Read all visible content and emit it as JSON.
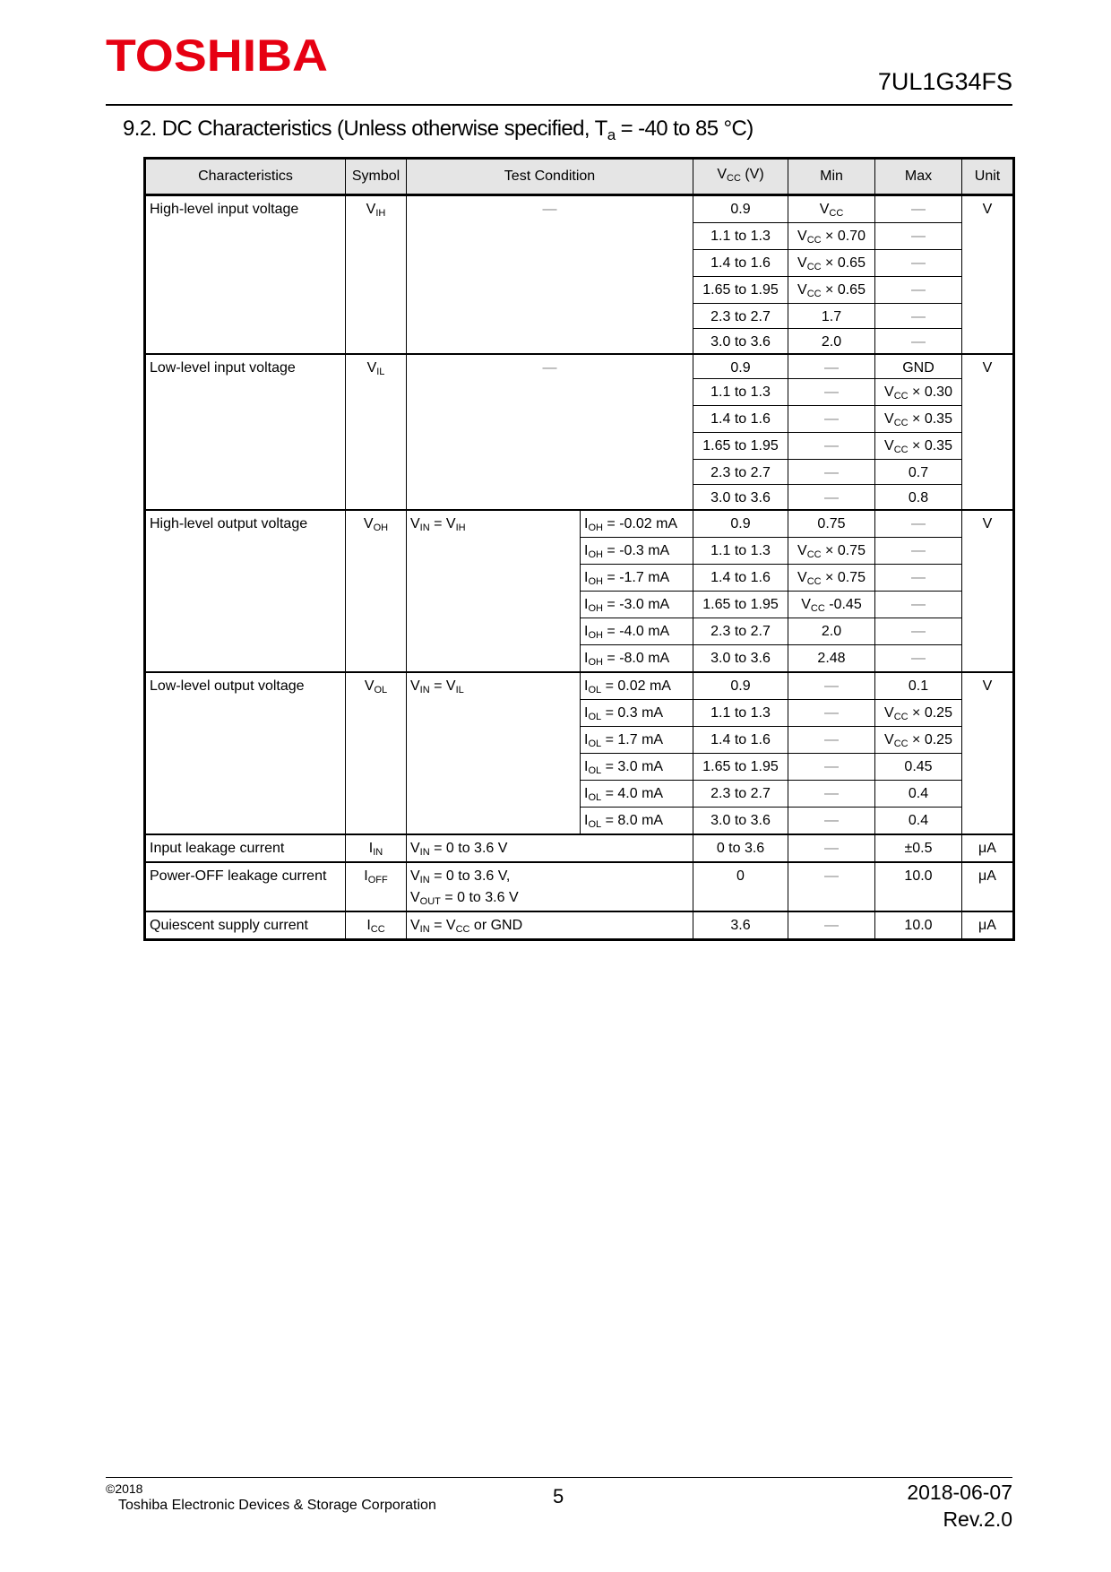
{
  "header": {
    "logo": "TOSHIBA",
    "part_number": "7UL1G34FS",
    "logo_color": "#e60012"
  },
  "section": {
    "title_pre": "9.2.  DC Characteristics (Unless otherwise specified, T",
    "title_sub": "a",
    "title_post": " = -40 to 85 °C)"
  },
  "table": {
    "columns": [
      "Characteristics",
      "Symbol",
      "Test Condition",
      [
        [
          "V",
          {
            "sub": "CC"
          },
          " (V)"
        ]
      ],
      "Min",
      "Max",
      "Unit"
    ],
    "groups": [
      {
        "name": "High-level input voltage",
        "symbol": [
          "V",
          {
            "sub": "IH"
          }
        ],
        "condition": [
          "—"
        ],
        "unit": "V",
        "cond_span": true,
        "rows": [
          {
            "vcc": "0.9",
            "min": [
              "V",
              {
                "sub": "CC"
              }
            ],
            "max": "—"
          },
          {
            "vcc": "1.1 to 1.3",
            "min": [
              "V",
              {
                "sub": "CC"
              },
              " × 0.70"
            ],
            "max": "—"
          },
          {
            "vcc": "1.4 to 1.6",
            "min": [
              "V",
              {
                "sub": "CC"
              },
              " × 0.65"
            ],
            "max": "—"
          },
          {
            "vcc": "1.65 to 1.95",
            "min": [
              "V",
              {
                "sub": "CC"
              },
              " × 0.65"
            ],
            "max": "—"
          },
          {
            "vcc": "2.3 to 2.7",
            "min": "1.7",
            "max": "—"
          },
          {
            "vcc": "3.0 to 3.6",
            "min": "2.0",
            "max": "—"
          }
        ]
      },
      {
        "name": "Low-level input voltage",
        "symbol": [
          "V",
          {
            "sub": "IL"
          }
        ],
        "condition": [
          "—"
        ],
        "unit": "V",
        "cond_span": true,
        "rows": [
          {
            "vcc": "0.9",
            "min": "—",
            "max": "GND"
          },
          {
            "vcc": "1.1 to 1.3",
            "min": "—",
            "max": [
              "V",
              {
                "sub": "CC"
              },
              " × 0.30"
            ]
          },
          {
            "vcc": "1.4 to 1.6",
            "min": "—",
            "max": [
              "V",
              {
                "sub": "CC"
              },
              " × 0.35"
            ]
          },
          {
            "vcc": "1.65 to 1.95",
            "min": "—",
            "max": [
              "V",
              {
                "sub": "CC"
              },
              " × 0.35"
            ]
          },
          {
            "vcc": "2.3 to 2.7",
            "min": "—",
            "max": "0.7"
          },
          {
            "vcc": "3.0 to 3.6",
            "min": "—",
            "max": "0.8"
          }
        ]
      },
      {
        "name": "High-level output voltage",
        "symbol": [
          "V",
          {
            "sub": "OH"
          }
        ],
        "condition": [
          "V",
          {
            "sub": "IN"
          },
          " = V",
          {
            "sub": "IH"
          }
        ],
        "unit": "V",
        "rows": [
          {
            "cond2": [
              "I",
              {
                "sub": "OH"
              },
              " = -0.02 mA"
            ],
            "vcc": "0.9",
            "min": "0.75",
            "max": "—"
          },
          {
            "cond2": [
              "I",
              {
                "sub": "OH"
              },
              " = -0.3 mA"
            ],
            "vcc": "1.1 to 1.3",
            "min": [
              "V",
              {
                "sub": "CC"
              },
              " × 0.75"
            ],
            "max": "—"
          },
          {
            "cond2": [
              "I",
              {
                "sub": "OH"
              },
              " = -1.7 mA"
            ],
            "vcc": "1.4 to 1.6",
            "min": [
              "V",
              {
                "sub": "CC"
              },
              " × 0.75"
            ],
            "max": "—"
          },
          {
            "cond2": [
              "I",
              {
                "sub": "OH"
              },
              " = -3.0 mA"
            ],
            "vcc": "1.65 to 1.95",
            "min": [
              "V",
              {
                "sub": "CC"
              },
              " -0.45"
            ],
            "max": "—"
          },
          {
            "cond2": [
              "I",
              {
                "sub": "OH"
              },
              " = -4.0 mA"
            ],
            "vcc": "2.3 to 2.7",
            "min": "2.0",
            "max": "—"
          },
          {
            "cond2": [
              "I",
              {
                "sub": "OH"
              },
              " = -8.0 mA"
            ],
            "vcc": "3.0 to 3.6",
            "min": "2.48",
            "max": "—"
          }
        ]
      },
      {
        "name": "Low-level output voltage",
        "symbol": [
          "V",
          {
            "sub": "OL"
          }
        ],
        "condition": [
          "V",
          {
            "sub": "IN"
          },
          " = V",
          {
            "sub": "IL"
          }
        ],
        "unit": "V",
        "rows": [
          {
            "cond2": [
              "I",
              {
                "sub": "OL"
              },
              " = 0.02 mA"
            ],
            "vcc": "0.9",
            "min": "—",
            "max": "0.1"
          },
          {
            "cond2": [
              "I",
              {
                "sub": "OL"
              },
              " = 0.3 mA"
            ],
            "vcc": "1.1 to 1.3",
            "min": "—",
            "max": [
              "V",
              {
                "sub": "CC"
              },
              " × 0.25"
            ]
          },
          {
            "cond2": [
              "I",
              {
                "sub": "OL"
              },
              " = 1.7 mA"
            ],
            "vcc": "1.4 to 1.6",
            "min": "—",
            "max": [
              "V",
              {
                "sub": "CC"
              },
              " × 0.25"
            ]
          },
          {
            "cond2": [
              "I",
              {
                "sub": "OL"
              },
              " = 3.0 mA"
            ],
            "vcc": "1.65 to 1.95",
            "min": "—",
            "max": "0.45"
          },
          {
            "cond2": [
              "I",
              {
                "sub": "OL"
              },
              " = 4.0 mA"
            ],
            "vcc": "2.3 to 2.7",
            "min": "—",
            "max": "0.4"
          },
          {
            "cond2": [
              "I",
              {
                "sub": "OL"
              },
              " = 8.0 mA"
            ],
            "vcc": "3.0 to 3.6",
            "min": "—",
            "max": "0.4"
          }
        ]
      },
      {
        "name": "Input leakage current",
        "symbol": [
          "I",
          {
            "sub": "IN"
          }
        ],
        "condition": [
          "V",
          {
            "sub": "IN"
          },
          " = 0 to 3.6 V"
        ],
        "unit": "μA",
        "cond_span": true,
        "left": true,
        "rows": [
          {
            "vcc": "0 to 3.6",
            "min": "—",
            "max": "±0.5"
          }
        ]
      },
      {
        "name": "Power-OFF leakage current",
        "symbol": [
          "I",
          {
            "sub": "OFF"
          }
        ],
        "condition": [
          "V",
          {
            "sub": "IN"
          },
          " = 0 to 3.6 V,",
          {
            "br": true
          },
          "V",
          {
            "sub": "OUT"
          },
          " = 0 to 3.6 V"
        ],
        "unit": "μA",
        "cond_span": true,
        "left": true,
        "tall": true,
        "rows": [
          {
            "vcc": "0",
            "min": "—",
            "max": "10.0"
          }
        ]
      },
      {
        "name": "Quiescent supply current",
        "symbol": [
          "I",
          {
            "sub": "CC"
          }
        ],
        "condition": [
          "V",
          {
            "sub": "IN"
          },
          " = V",
          {
            "sub": "CC"
          },
          " or GND"
        ],
        "unit": "μA",
        "cond_span": true,
        "left": true,
        "rows": [
          {
            "vcc": "3.6",
            "min": "—",
            "max": "10.0"
          }
        ]
      }
    ]
  },
  "footer": {
    "copyright": "©2018",
    "company": "Toshiba Electronic Devices & Storage Corporation",
    "page": "5",
    "date": "2018-06-07",
    "revision": "Rev.2.0"
  }
}
